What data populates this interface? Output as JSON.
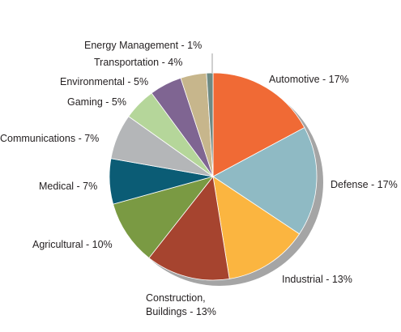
{
  "chart_data": {
    "type": "pie",
    "title": "",
    "slices": [
      {
        "name": "Automotive",
        "value": 17,
        "label": "Automotive - 17%",
        "color": "#f06a35"
      },
      {
        "name": "Defense",
        "value": 17,
        "label": "Defense - 17%",
        "color": "#8fbac4"
      },
      {
        "name": "Industrial",
        "value": 13,
        "label": "Industrial - 13%",
        "color": "#fbb540"
      },
      {
        "name": "Construction, Buildings",
        "value": 13,
        "label": [
          "Construction,",
          "Buildings - 13%"
        ],
        "color": "#a6442f"
      },
      {
        "name": "Agricultural",
        "value": 10,
        "label": "Agricultural - 10%",
        "color": "#7a9a43"
      },
      {
        "name": "Medical",
        "value": 7,
        "label": "Medical - 7%",
        "color": "#0b5c75"
      },
      {
        "name": "Communications",
        "value": 7,
        "label": "Communications - 7%",
        "color": "#b4b6b8"
      },
      {
        "name": "Gaming",
        "value": 5,
        "label": "Gaming - 5%",
        "color": "#b5d69a"
      },
      {
        "name": "Environmental",
        "value": 5,
        "label": "Environmental - 5%",
        "color": "#7f6592"
      },
      {
        "name": "Transportation",
        "value": 4,
        "label": "Transportation - 4%",
        "color": "#c7b68c"
      },
      {
        "name": "Energy Management",
        "value": 1,
        "label": "Energy Management - 1%",
        "color": "#6e8a83"
      }
    ]
  }
}
